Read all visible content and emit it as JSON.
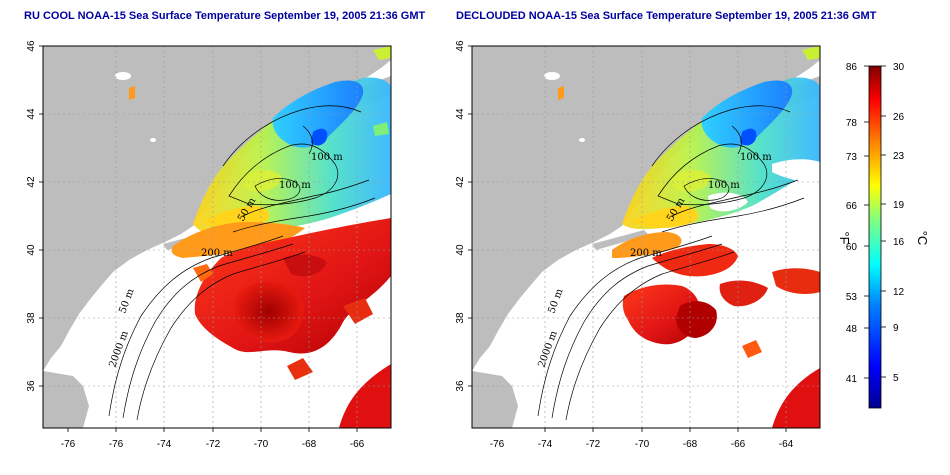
{
  "panels": [
    {
      "id": "left",
      "title": "RU COOL NOAA-15 Sea Surface Temperature September 19, 2005 21:36 GMT",
      "contour_labels": [
        "100 m",
        "100 m",
        "50 m",
        "200 m",
        "50 m",
        "2000 m"
      ]
    },
    {
      "id": "right",
      "title": "DECLOUDED NOAA-15 Sea Surface Temperature September 19, 2005 21:36 GMT",
      "contour_labels": [
        "100 m",
        "100 m",
        "50 m",
        "200 m",
        "50 m",
        "2000 m"
      ]
    }
  ],
  "x_ticks": [
    "-76",
    "-74",
    "-72",
    "-70",
    "-68",
    "-66",
    "-64"
  ],
  "y_ticks": [
    "46",
    "44",
    "42",
    "40",
    "38",
    "36"
  ],
  "colorbar": {
    "fahrenheit_ticks": [
      "86",
      "78",
      "73",
      "66",
      "60",
      "53",
      "48",
      "41"
    ],
    "celsius_ticks": [
      "30",
      "26",
      "23",
      "19",
      "16",
      "12",
      "9",
      "5"
    ],
    "fahrenheit_unit": "°F",
    "celsius_unit": "°C",
    "colors": [
      "#00008f",
      "#0000ff",
      "#0080ff",
      "#00ffff",
      "#80ff80",
      "#ffff00",
      "#ff8000",
      "#ff0000",
      "#800000"
    ]
  },
  "colors": {
    "land": "#bdbdbd",
    "ocean_nodata": "#ffffff",
    "title": "#0000a0",
    "grid": "#9a9a9a"
  }
}
